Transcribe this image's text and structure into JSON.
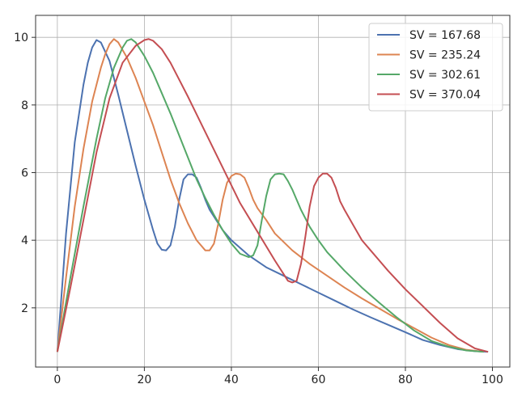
{
  "chart_data": {
    "type": "line",
    "title": "",
    "xlabel": "",
    "ylabel": "",
    "xlim": [
      -5,
      104
    ],
    "ylim": [
      0.25,
      10.65
    ],
    "xticks": [
      0,
      20,
      40,
      60,
      80,
      100
    ],
    "yticks": [
      2,
      4,
      6,
      8,
      10
    ],
    "xtick_labels": [
      "0",
      "20",
      "40",
      "60",
      "80",
      "100"
    ],
    "ytick_labels": [
      "2",
      "4",
      "6",
      "8",
      "10"
    ],
    "grid": true,
    "legend_position": "top-right",
    "series": [
      {
        "name": "SV = 167.68",
        "color": "#4c72b0",
        "x": [
          0,
          2,
          4,
          6,
          7,
          8,
          9,
          10,
          12,
          14,
          16,
          18,
          20,
          22,
          23,
          24,
          25,
          26,
          27,
          28,
          29,
          30,
          31,
          32,
          33,
          34,
          35,
          36,
          38,
          40,
          44,
          48,
          52,
          56,
          60,
          64,
          68,
          72,
          76,
          80,
          84,
          88,
          92,
          96,
          99
        ],
        "y": [
          0.7,
          4.2,
          6.9,
          8.6,
          9.25,
          9.7,
          9.92,
          9.85,
          9.3,
          8.3,
          7.25,
          6.2,
          5.2,
          4.3,
          3.9,
          3.72,
          3.7,
          3.85,
          4.4,
          5.2,
          5.8,
          5.95,
          5.95,
          5.85,
          5.55,
          5.2,
          4.9,
          4.7,
          4.3,
          4.0,
          3.55,
          3.2,
          2.95,
          2.7,
          2.45,
          2.2,
          1.95,
          1.72,
          1.5,
          1.28,
          1.05,
          0.9,
          0.78,
          0.72,
          0.7
        ]
      },
      {
        "name": "SV = 235.24",
        "color": "#dd8452",
        "x": [
          0,
          2,
          4,
          6,
          8,
          10,
          11,
          12,
          13,
          14,
          16,
          18,
          20,
          22,
          24,
          26,
          28,
          30,
          32,
          34,
          35,
          36,
          37,
          38,
          39,
          40,
          41,
          42,
          43,
          44,
          45,
          46,
          48,
          50,
          54,
          58,
          62,
          66,
          70,
          74,
          78,
          82,
          86,
          90,
          94,
          98
        ],
        "y": [
          0.7,
          2.9,
          5.0,
          6.7,
          8.1,
          9.1,
          9.5,
          9.8,
          9.95,
          9.85,
          9.4,
          8.8,
          8.1,
          7.4,
          6.6,
          5.8,
          5.1,
          4.5,
          4.0,
          3.7,
          3.7,
          3.9,
          4.5,
          5.2,
          5.7,
          5.9,
          5.97,
          5.95,
          5.85,
          5.55,
          5.2,
          4.95,
          4.6,
          4.2,
          3.7,
          3.3,
          2.95,
          2.6,
          2.28,
          1.98,
          1.68,
          1.4,
          1.12,
          0.9,
          0.76,
          0.7
        ]
      },
      {
        "name": "SV = 302.61",
        "color": "#55a868",
        "x": [
          0,
          3,
          6,
          9,
          11,
          13,
          15,
          16,
          17,
          18,
          20,
          22,
          24,
          26,
          28,
          30,
          32,
          34,
          36,
          38,
          40,
          42,
          44,
          45,
          46,
          47,
          48,
          49,
          50,
          51,
          52,
          53,
          54,
          55,
          56,
          58,
          60,
          62,
          66,
          70,
          74,
          78,
          82,
          86,
          90,
          94,
          98
        ],
        "y": [
          0.7,
          2.9,
          5.0,
          7.0,
          8.2,
          9.1,
          9.7,
          9.9,
          9.95,
          9.85,
          9.45,
          8.95,
          8.35,
          7.75,
          7.1,
          6.45,
          5.8,
          5.25,
          4.75,
          4.3,
          3.9,
          3.6,
          3.5,
          3.55,
          3.85,
          4.6,
          5.3,
          5.8,
          5.95,
          5.97,
          5.95,
          5.75,
          5.5,
          5.2,
          4.9,
          4.4,
          4.0,
          3.65,
          3.1,
          2.6,
          2.15,
          1.72,
          1.33,
          1.02,
          0.85,
          0.74,
          0.7
        ]
      },
      {
        "name": "SV = 370.04",
        "color": "#c44e52",
        "x": [
          0,
          3,
          6,
          9,
          12,
          15,
          18,
          20,
          21,
          22,
          24,
          26,
          28,
          30,
          34,
          38,
          42,
          46,
          50,
          53,
          54,
          55,
          56,
          57,
          58,
          59,
          60,
          61,
          62,
          63,
          64,
          65,
          66,
          68,
          70,
          72,
          74,
          76,
          80,
          84,
          88,
          92,
          96,
          99
        ],
        "y": [
          0.7,
          2.6,
          4.6,
          6.6,
          8.2,
          9.25,
          9.75,
          9.92,
          9.95,
          9.9,
          9.65,
          9.25,
          8.75,
          8.25,
          7.2,
          6.15,
          5.1,
          4.25,
          3.4,
          2.8,
          2.75,
          2.8,
          3.3,
          4.1,
          5.0,
          5.6,
          5.85,
          5.97,
          5.97,
          5.85,
          5.55,
          5.15,
          4.9,
          4.45,
          4.0,
          3.7,
          3.4,
          3.1,
          2.55,
          2.05,
          1.55,
          1.1,
          0.8,
          0.7
        ]
      }
    ]
  }
}
